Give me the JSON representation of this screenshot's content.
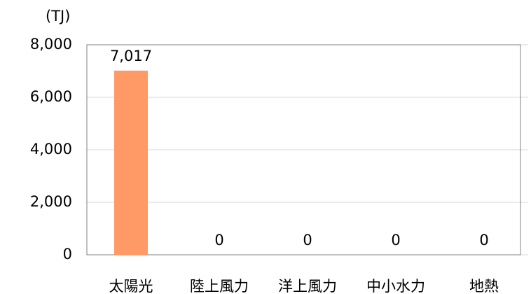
{
  "chart_data": {
    "type": "bar",
    "y_unit": "(TJ)",
    "categories": [
      "太陽光",
      "陸上風力",
      "洋上風力",
      "中小水力",
      "地熱"
    ],
    "values": [
      7017,
      0,
      0,
      0,
      0
    ],
    "value_labels": [
      "7,017",
      "0",
      "0",
      "0",
      "0"
    ],
    "color": "#ff9966",
    "ylim": [
      0,
      8000
    ],
    "yticks": [
      0,
      {
        "value": 2000,
        "label": "2,000"
      },
      {
        "value": 4000,
        "label": "4,000"
      },
      {
        "value": 6000,
        "label": "6,000"
      },
      {
        "value": 8000,
        "label": "8,000"
      }
    ],
    "grid": true
  }
}
